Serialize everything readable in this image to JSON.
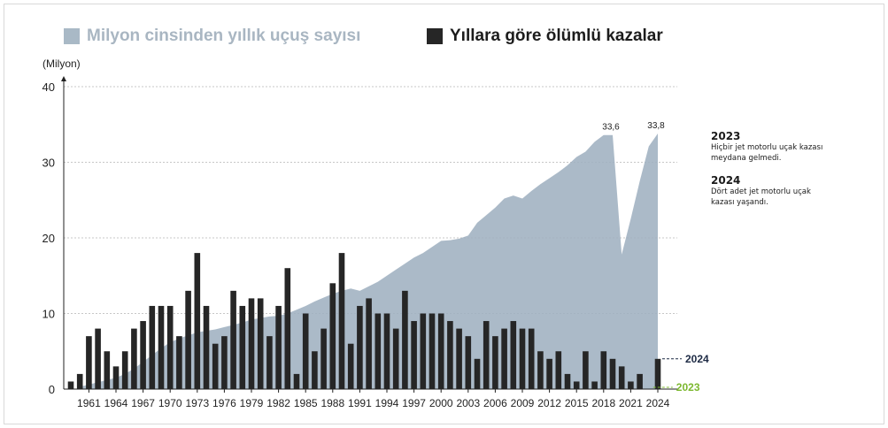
{
  "legend": {
    "area_label": "Milyon cinsinden yıllık uçuş sayısı",
    "bar_label": "Yıllara göre ölümlü kazalar"
  },
  "colors": {
    "area": "#9fb1c0",
    "bar": "#262626",
    "grid": "#c7c7c7",
    "marker_2024": "#1d2a44",
    "marker_2023": "#7cb82f"
  },
  "notes": [
    {
      "year": "2023",
      "text": "Hiçbir jet motorlu uçak kazası meydana gelmedi."
    },
    {
      "year": "2024",
      "text": "Dört adet jet motorlu uçak kazası yaşandı."
    }
  ],
  "chart_data": {
    "type": "bar",
    "ylabel": "(Milyon)",
    "ylim": [
      0,
      40
    ],
    "yticks": [
      0,
      10,
      20,
      30,
      40
    ],
    "grid": true,
    "x": [
      1959,
      1960,
      1961,
      1962,
      1963,
      1964,
      1965,
      1966,
      1967,
      1968,
      1969,
      1970,
      1971,
      1972,
      1973,
      1974,
      1975,
      1976,
      1977,
      1978,
      1979,
      1980,
      1981,
      1982,
      1983,
      1984,
      1985,
      1986,
      1987,
      1988,
      1989,
      1990,
      1991,
      1992,
      1993,
      1994,
      1995,
      1996,
      1997,
      1998,
      1999,
      2000,
      2001,
      2002,
      2003,
      2004,
      2005,
      2006,
      2007,
      2008,
      2009,
      2010,
      2011,
      2012,
      2013,
      2014,
      2015,
      2016,
      2017,
      2018,
      2019,
      2020,
      2021,
      2022,
      2023,
      2024
    ],
    "xtick_labels": [
      "1961",
      "1964",
      "1967",
      "1970",
      "1973",
      "1976",
      "1979",
      "1982",
      "1985",
      "1988",
      "1991",
      "1994",
      "1997",
      "2000",
      "2003",
      "2006",
      "2009",
      "2012",
      "2015",
      "2018",
      "2021",
      "2024"
    ],
    "series": [
      {
        "name": "Yıllara göre ölümlü kazalar",
        "type": "bar",
        "values": [
          1,
          2,
          7,
          8,
          5,
          3,
          5,
          8,
          9,
          11,
          11,
          11,
          7,
          13,
          18,
          11,
          6,
          7,
          13,
          11,
          12,
          12,
          7,
          11,
          16,
          2,
          10,
          5,
          8,
          14,
          18,
          6,
          11,
          12,
          10,
          10,
          8,
          13,
          9,
          10,
          10,
          10,
          9,
          8,
          7,
          4,
          9,
          7,
          8,
          9,
          8,
          8,
          5,
          4,
          5,
          2,
          1,
          5,
          1,
          5,
          4,
          3,
          1,
          2,
          0,
          4
        ]
      },
      {
        "name": "Milyon cinsinden yıllık uçuş sayısı",
        "type": "area",
        "values": [
          null,
          0.3,
          0.6,
          0.9,
          1.2,
          1.5,
          2.0,
          2.7,
          3.6,
          4.5,
          5.4,
          6.2,
          6.7,
          7.1,
          7.5,
          7.7,
          7.9,
          8.2,
          8.5,
          8.8,
          9.2,
          9.4,
          9.6,
          9.7,
          10.0,
          10.5,
          11.0,
          11.6,
          12.1,
          12.6,
          13.0,
          13.3,
          13.0,
          13.6,
          14.2,
          15.0,
          15.8,
          16.6,
          17.4,
          18.0,
          18.8,
          19.6,
          19.7,
          19.9,
          20.3,
          22.0,
          23.0,
          24.0,
          25.2,
          25.6,
          25.2,
          26.2,
          27.1,
          27.9,
          28.7,
          29.6,
          30.7,
          31.4,
          32.7,
          33.6,
          33.6,
          17.8,
          22.5,
          27.5,
          32.1,
          33.8
        ]
      }
    ],
    "value_labels": {
      "2019": "33,6",
      "2024": "33,8"
    },
    "markers": [
      {
        "year": "2024",
        "value": 4
      },
      {
        "year": "2023",
        "value": 0
      }
    ]
  }
}
